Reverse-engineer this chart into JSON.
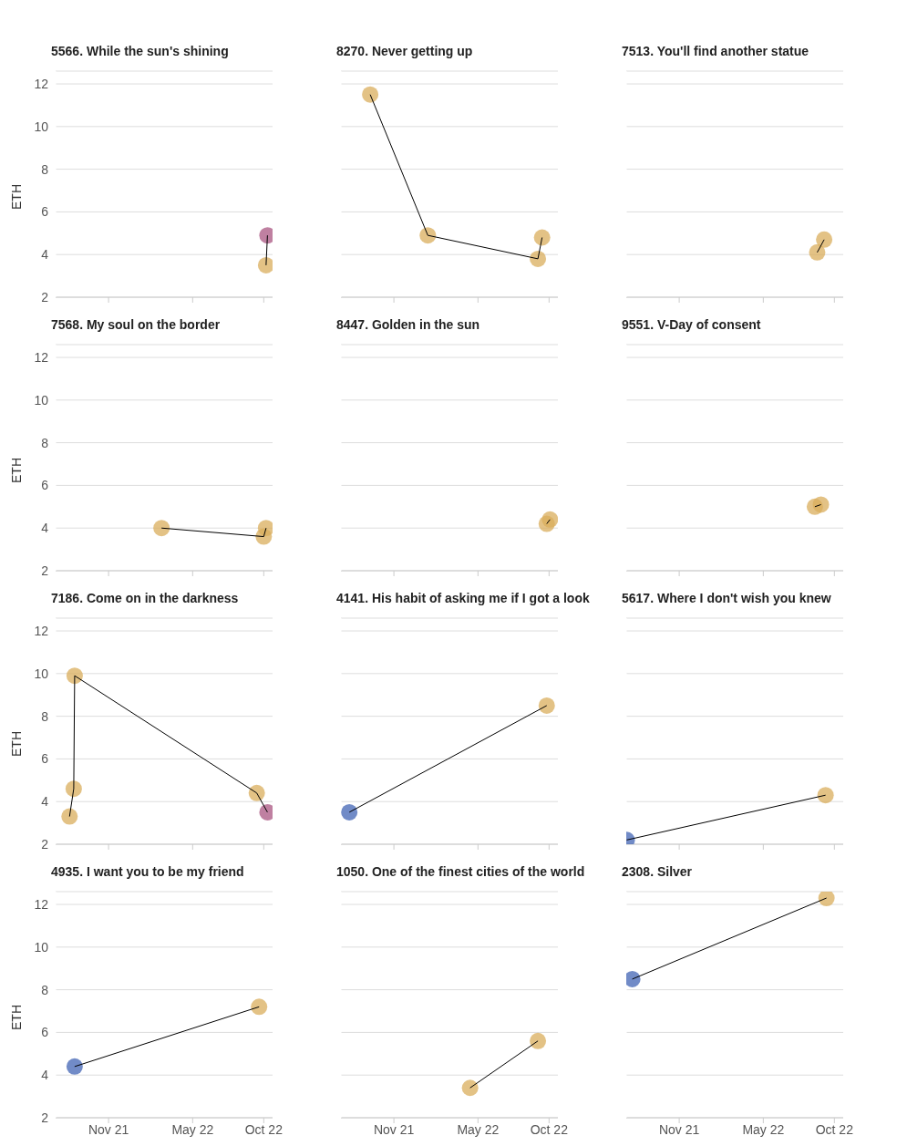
{
  "chart_data": [
    {
      "type": "scatter",
      "title": "5566. While the sun's shining",
      "ylabel": "ETH",
      "xlim": [
        "2021-07-10",
        "2022-10-20"
      ],
      "xticks": [
        {
          "value": "2021-11-01",
          "label": null
        },
        {
          "value": "2022-05-01",
          "label": null
        },
        {
          "value": "2022-10-01",
          "label": null
        }
      ],
      "ylim": [
        2,
        12.6
      ],
      "yticks": [
        2,
        4,
        6,
        8,
        10,
        12
      ],
      "grid": "y",
      "tick_labels": "y",
      "marker": "circle",
      "series": [
        {
          "type": "line",
          "color": "#000000",
          "marker": "none",
          "x": [
            "2022-10-06",
            "2022-10-09"
          ],
          "values": [
            3.5,
            4.9
          ]
        },
        {
          "color": "#d9ae5c",
          "x": [
            "2022-10-06"
          ],
          "values": [
            3.5
          ]
        },
        {
          "color": "#a95682",
          "x": [
            "2022-10-09"
          ],
          "values": [
            4.9
          ]
        }
      ]
    },
    {
      "type": "scatter",
      "title": "8270. Never getting up",
      "xlim": [
        "2021-07-10",
        "2022-10-20"
      ],
      "xticks": [
        {
          "value": "2021-11-01",
          "label": null
        },
        {
          "value": "2022-05-01",
          "label": null
        },
        {
          "value": "2022-10-01",
          "label": null
        }
      ],
      "ylim": [
        2,
        12.6
      ],
      "yticks": [
        2,
        4,
        6,
        8,
        10,
        12
      ],
      "grid": "y",
      "tick_labels": false,
      "marker": "circle",
      "series": [
        {
          "type": "line",
          "color": "#000000",
          "marker": "none",
          "x": [
            "2021-09-11",
            "2022-01-13",
            "2022-09-07",
            "2022-09-16"
          ],
          "values": [
            11.5,
            4.9,
            3.8,
            4.8
          ]
        },
        {
          "color": "#d9ae5c",
          "x": [
            "2021-09-11",
            "2022-01-13",
            "2022-09-07",
            "2022-09-16"
          ],
          "values": [
            11.5,
            4.9,
            3.8,
            4.8
          ]
        }
      ]
    },
    {
      "type": "scatter",
      "title": "7513. You'll find another statue",
      "xlim": [
        "2021-07-10",
        "2022-10-20"
      ],
      "xticks": [
        {
          "value": "2021-11-01",
          "label": null
        },
        {
          "value": "2022-05-01",
          "label": null
        },
        {
          "value": "2022-10-01",
          "label": null
        }
      ],
      "ylim": [
        2,
        12.6
      ],
      "yticks": [
        2,
        4,
        6,
        8,
        10,
        12
      ],
      "grid": "y",
      "tick_labels": false,
      "marker": "circle",
      "series": [
        {
          "type": "line",
          "color": "#000000",
          "marker": "none",
          "x": [
            "2022-08-25",
            "2022-09-09"
          ],
          "values": [
            4.1,
            4.7
          ]
        },
        {
          "color": "#d9ae5c",
          "x": [
            "2022-08-25",
            "2022-09-09"
          ],
          "values": [
            4.1,
            4.7
          ]
        }
      ]
    },
    {
      "type": "scatter",
      "title": "7568. My soul on the border",
      "ylabel": "ETH",
      "xlim": [
        "2021-07-10",
        "2022-10-20"
      ],
      "xticks": [
        {
          "value": "2021-11-01",
          "label": null
        },
        {
          "value": "2022-05-01",
          "label": null
        },
        {
          "value": "2022-10-01",
          "label": null
        }
      ],
      "ylim": [
        2,
        12.6
      ],
      "yticks": [
        2,
        4,
        6,
        8,
        10,
        12
      ],
      "grid": "y",
      "tick_labels": "y",
      "marker": "circle",
      "series": [
        {
          "type": "line",
          "color": "#000000",
          "marker": "none",
          "x": [
            "2022-02-23",
            "2022-10-01",
            "2022-10-06"
          ],
          "values": [
            4.0,
            3.6,
            4.0
          ]
        },
        {
          "color": "#d9ae5c",
          "x": [
            "2022-02-23",
            "2022-10-01",
            "2022-10-06"
          ],
          "values": [
            4.0,
            3.6,
            4.0
          ]
        }
      ]
    },
    {
      "type": "scatter",
      "title": "8447. Golden in the sun",
      "xlim": [
        "2021-07-10",
        "2022-10-20"
      ],
      "xticks": [
        {
          "value": "2021-11-01",
          "label": null
        },
        {
          "value": "2022-05-01",
          "label": null
        },
        {
          "value": "2022-10-01",
          "label": null
        }
      ],
      "ylim": [
        2,
        12.6
      ],
      "yticks": [
        2,
        4,
        6,
        8,
        10,
        12
      ],
      "grid": "y",
      "tick_labels": false,
      "marker": "circle",
      "series": [
        {
          "type": "line",
          "color": "#000000",
          "marker": "none",
          "x": [
            "2022-09-26",
            "2022-10-03"
          ],
          "values": [
            4.2,
            4.4
          ]
        },
        {
          "color": "#d9ae5c",
          "x": [
            "2022-09-26",
            "2022-10-03"
          ],
          "values": [
            4.2,
            4.4
          ]
        }
      ]
    },
    {
      "type": "scatter",
      "title": "9551. V-Day of consent",
      "xlim": [
        "2021-07-10",
        "2022-10-20"
      ],
      "xticks": [
        {
          "value": "2021-11-01",
          "label": null
        },
        {
          "value": "2022-05-01",
          "label": null
        },
        {
          "value": "2022-10-01",
          "label": null
        }
      ],
      "ylim": [
        2,
        12.6
      ],
      "yticks": [
        2,
        4,
        6,
        8,
        10,
        12
      ],
      "grid": "y",
      "tick_labels": false,
      "marker": "circle",
      "series": [
        {
          "type": "line",
          "color": "#000000",
          "marker": "none",
          "x": [
            "2022-08-20",
            "2022-09-02"
          ],
          "values": [
            5.0,
            5.1
          ]
        },
        {
          "color": "#d9ae5c",
          "x": [
            "2022-08-20",
            "2022-09-02"
          ],
          "values": [
            5.0,
            5.1
          ]
        }
      ]
    },
    {
      "type": "scatter",
      "title": "7186. Come on in the darkness",
      "ylabel": "ETH",
      "xlim": [
        "2021-07-10",
        "2022-10-20"
      ],
      "xticks": [
        {
          "value": "2021-11-01",
          "label": null
        },
        {
          "value": "2022-05-01",
          "label": null
        },
        {
          "value": "2022-10-01",
          "label": null
        }
      ],
      "ylim": [
        2,
        12.6
      ],
      "yticks": [
        2,
        4,
        6,
        8,
        10,
        12
      ],
      "grid": "y",
      "tick_labels": "y",
      "marker": "circle",
      "series": [
        {
          "type": "line",
          "color": "#000000",
          "marker": "none",
          "x": [
            "2021-08-09",
            "2021-08-18",
            "2021-08-20",
            "2022-09-16",
            "2022-10-09"
          ],
          "values": [
            3.3,
            4.6,
            9.9,
            4.4,
            3.5
          ]
        },
        {
          "color": "#d9ae5c",
          "x": [
            "2021-08-09",
            "2021-08-18",
            "2021-08-20",
            "2022-09-16"
          ],
          "values": [
            3.3,
            4.6,
            9.9,
            4.4
          ]
        },
        {
          "color": "#a95682",
          "x": [
            "2022-10-09"
          ],
          "values": [
            3.5
          ]
        }
      ]
    },
    {
      "type": "scatter",
      "title": "4141. His habit of asking me if I got a look",
      "xlim": [
        "2021-07-10",
        "2022-10-20"
      ],
      "xticks": [
        {
          "value": "2021-11-01",
          "label": null
        },
        {
          "value": "2022-05-01",
          "label": null
        },
        {
          "value": "2022-10-01",
          "label": null
        }
      ],
      "ylim": [
        2,
        12.6
      ],
      "yticks": [
        2,
        4,
        6,
        8,
        10,
        12
      ],
      "grid": "y",
      "tick_labels": false,
      "marker": "circle",
      "series": [
        {
          "type": "line",
          "color": "#000000",
          "marker": "none",
          "x": [
            "2021-07-28",
            "2022-09-26"
          ],
          "values": [
            3.5,
            8.5
          ]
        },
        {
          "color": "#4264b4",
          "x": [
            "2021-07-28"
          ],
          "values": [
            3.5
          ]
        },
        {
          "color": "#d9ae5c",
          "x": [
            "2022-09-26"
          ],
          "values": [
            8.5
          ]
        }
      ]
    },
    {
      "type": "scatter",
      "title": "5617. Where I don't wish you knew",
      "xlim": [
        "2021-07-10",
        "2022-10-20"
      ],
      "xticks": [
        {
          "value": "2021-11-01",
          "label": null
        },
        {
          "value": "2022-05-01",
          "label": null
        },
        {
          "value": "2022-10-01",
          "label": null
        }
      ],
      "ylim": [
        2,
        12.6
      ],
      "yticks": [
        2,
        4,
        6,
        8,
        10,
        12
      ],
      "grid": "y",
      "tick_labels": false,
      "marker": "circle",
      "series": [
        {
          "type": "line",
          "color": "#000000",
          "marker": "none",
          "x": [
            "2021-07-11",
            "2022-09-12"
          ],
          "values": [
            2.2,
            4.3
          ]
        },
        {
          "color": "#4264b4",
          "x": [
            "2021-07-11"
          ],
          "values": [
            2.2
          ]
        },
        {
          "color": "#d9ae5c",
          "x": [
            "2022-09-12"
          ],
          "values": [
            4.3
          ]
        }
      ]
    },
    {
      "type": "scatter",
      "title": "4935. I want you to be my friend",
      "ylabel": "ETH",
      "xlim": [
        "2021-07-10",
        "2022-10-20"
      ],
      "xticks": [
        {
          "value": "2021-11-01",
          "label": "Nov 21"
        },
        {
          "value": "2022-05-01",
          "label": "May 22"
        },
        {
          "value": "2022-10-01",
          "label": "Oct 22"
        }
      ],
      "ylim": [
        2,
        12.6
      ],
      "yticks": [
        2,
        4,
        6,
        8,
        10,
        12
      ],
      "grid": "y",
      "marker": "circle",
      "series": [
        {
          "type": "line",
          "color": "#000000",
          "marker": "none",
          "x": [
            "2021-08-20",
            "2022-09-21"
          ],
          "values": [
            4.4,
            7.2
          ]
        },
        {
          "color": "#4264b4",
          "x": [
            "2021-08-20"
          ],
          "values": [
            4.4
          ]
        },
        {
          "color": "#d9ae5c",
          "x": [
            "2022-09-21"
          ],
          "values": [
            7.2
          ]
        }
      ]
    },
    {
      "type": "scatter",
      "title": "1050. One of the finest cities of the world",
      "xlim": [
        "2021-07-10",
        "2022-10-20"
      ],
      "xticks": [
        {
          "value": "2021-11-01",
          "label": "Nov 21"
        },
        {
          "value": "2022-05-01",
          "label": "May 22"
        },
        {
          "value": "2022-10-01",
          "label": "Oct 22"
        }
      ],
      "ylim": [
        2,
        12.6
      ],
      "yticks": [
        2,
        4,
        6,
        8,
        10,
        12
      ],
      "grid": "y",
      "tick_labels": "x",
      "marker": "circle",
      "series": [
        {
          "type": "line",
          "color": "#000000",
          "marker": "none",
          "x": [
            "2022-04-14",
            "2022-09-07"
          ],
          "values": [
            3.4,
            5.6
          ]
        },
        {
          "color": "#d9ae5c",
          "x": [
            "2022-04-14",
            "2022-09-07"
          ],
          "values": [
            3.4,
            5.6
          ]
        }
      ]
    },
    {
      "type": "scatter",
      "title": "2308. Silver",
      "xlim": [
        "2021-07-10",
        "2022-10-20"
      ],
      "xticks": [
        {
          "value": "2021-11-01",
          "label": "Nov 21"
        },
        {
          "value": "2022-05-01",
          "label": "May 22"
        },
        {
          "value": "2022-10-01",
          "label": "Oct 22"
        }
      ],
      "ylim": [
        2,
        12.6
      ],
      "yticks": [
        2,
        4,
        6,
        8,
        10,
        12
      ],
      "grid": "y",
      "tick_labels": "x",
      "marker": "circle",
      "series": [
        {
          "type": "line",
          "color": "#000000",
          "marker": "none",
          "x": [
            "2021-07-23",
            "2022-09-14"
          ],
          "values": [
            8.5,
            12.3
          ]
        },
        {
          "color": "#4264b4",
          "x": [
            "2021-07-23"
          ],
          "values": [
            8.5
          ]
        },
        {
          "color": "#d9ae5c",
          "x": [
            "2022-09-14"
          ],
          "values": [
            12.3
          ]
        }
      ]
    }
  ]
}
